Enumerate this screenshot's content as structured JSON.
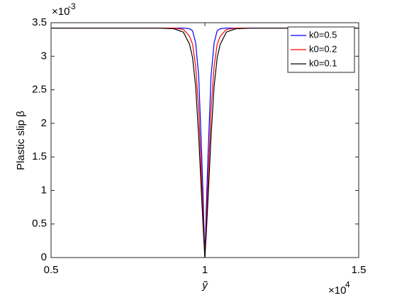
{
  "chart_data": {
    "type": "line",
    "ylabel": "Plastic slip β",
    "xlabel": "ỹ",
    "y_exponent": {
      "base": "×10",
      "power": "-3"
    },
    "x_exponent": {
      "base": "×10",
      "power": "4"
    },
    "x": [
      0.5,
      0.85,
      0.9,
      0.93,
      0.95,
      0.96,
      0.97,
      0.98,
      0.99,
      0.995,
      1,
      1.005,
      1.01,
      1.02,
      1.03,
      1.04,
      1.05,
      1.07,
      1.1,
      1.15,
      1.5
    ],
    "series": [
      {
        "name": "k0=0.5",
        "color": "#0000ff",
        "values": [
          3.42,
          3.42,
          3.42,
          3.42,
          3.41,
          3.38,
          3.2,
          2.7,
          1.5,
          0.8,
          0,
          0.8,
          1.5,
          2.7,
          3.2,
          3.38,
          3.41,
          3.42,
          3.42,
          3.42,
          3.42
        ]
      },
      {
        "name": "k0=0.2",
        "color": "#ff0000",
        "values": [
          3.42,
          3.42,
          3.42,
          3.4,
          3.3,
          3.18,
          2.85,
          2.2,
          1.1,
          0.55,
          0,
          0.55,
          1.1,
          2.2,
          2.85,
          3.18,
          3.3,
          3.4,
          3.42,
          3.42,
          3.42
        ]
      },
      {
        "name": "k0=0.1",
        "color": "#000000",
        "values": [
          3.42,
          3.42,
          3.41,
          3.36,
          3.18,
          2.98,
          2.55,
          1.8,
          0.85,
          0.4,
          0,
          0.4,
          0.85,
          1.8,
          2.55,
          2.98,
          3.18,
          3.36,
          3.41,
          3.42,
          3.42
        ]
      }
    ],
    "xlim": [
      0.5,
      1.5
    ],
    "xticks": [
      0.5,
      1,
      1.5
    ],
    "ylim": [
      0,
      3.5
    ],
    "yticks": [
      0,
      0.5,
      1,
      1.5,
      2,
      2.5,
      3,
      3.5
    ],
    "legend": "top-right"
  }
}
